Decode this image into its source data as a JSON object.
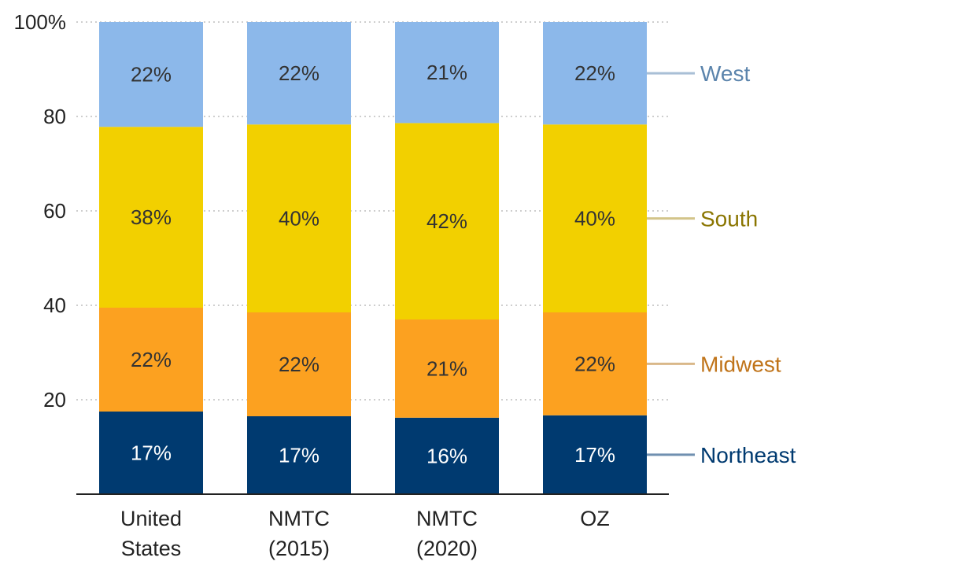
{
  "chart_data": {
    "type": "bar",
    "stacked": true,
    "categories": [
      [
        "United",
        "States"
      ],
      [
        "NMTC",
        "(2015)"
      ],
      [
        "NMTC",
        "(2020)"
      ],
      [
        "OZ"
      ]
    ],
    "series": [
      {
        "name": "Northeast",
        "values": [
          17.5,
          16.5,
          16.2,
          16.7
        ],
        "labels": [
          "17%",
          "17%",
          "16%",
          "17%"
        ],
        "color": "#003a70",
        "text_color": "#ffffff",
        "legend_color": "#003a70",
        "leader_color": "#7090b0"
      },
      {
        "name": "Midwest",
        "values": [
          22.0,
          22.0,
          20.8,
          21.8
        ],
        "labels": [
          "22%",
          "22%",
          "21%",
          "22%"
        ],
        "color": "#fca120",
        "text_color": "#333333",
        "legend_color": "#c0741a",
        "leader_color": "#d9b889"
      },
      {
        "name": "South",
        "values": [
          38.3,
          39.8,
          41.6,
          39.8
        ],
        "labels": [
          "38%",
          "40%",
          "42%",
          "40%"
        ],
        "color": "#f2d000",
        "text_color": "#333333",
        "legend_color": "#8a7500",
        "leader_color": "#d3c48a"
      },
      {
        "name": "West",
        "values": [
          22.2,
          21.7,
          21.4,
          21.7
        ],
        "labels": [
          "22%",
          "22%",
          "21%",
          "22%"
        ],
        "color": "#8cb8ea",
        "text_color": "#333333",
        "legend_color": "#5b84ac",
        "leader_color": "#a9bfd6"
      }
    ],
    "y_ticks": [
      "20",
      "40",
      "60",
      "80",
      "100%"
    ],
    "y_tick_values": [
      20,
      40,
      60,
      80,
      100
    ],
    "ylim": [
      0,
      100
    ],
    "grid": true,
    "legend": "right, labels aligned to last bar segments"
  }
}
